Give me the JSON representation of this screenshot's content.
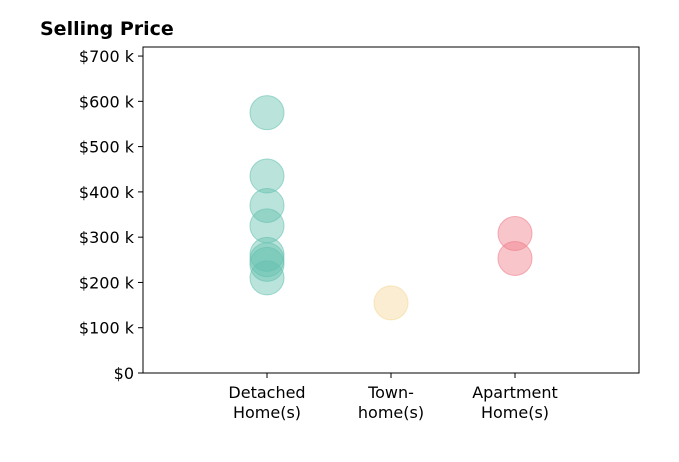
{
  "chart_data": {
    "type": "scatter",
    "title": "Selling Price",
    "xlabel": "",
    "ylabel": "",
    "ylim": [
      0,
      720000
    ],
    "grid": false,
    "categories": [
      [
        "Detached",
        "Home(s)"
      ],
      [
        "Town-",
        "home(s)"
      ],
      [
        "Apartment",
        "Home(s)"
      ]
    ],
    "y_ticks": [
      {
        "value": 0,
        "label": "$0"
      },
      {
        "value": 100000,
        "label": "$100 k"
      },
      {
        "value": 200000,
        "label": "$200 k"
      },
      {
        "value": 300000,
        "label": "$300 k"
      },
      {
        "value": 400000,
        "label": "$400 k"
      },
      {
        "value": 500000,
        "label": "$500 k"
      },
      {
        "value": 600000,
        "label": "$600 k"
      },
      {
        "value": 700000,
        "label": "$700 k"
      }
    ],
    "series": [
      {
        "category_index": 0,
        "color": "#66c2b0",
        "values": [
          575000,
          435000,
          370000,
          325000,
          262000,
          250000,
          240000,
          210000
        ]
      },
      {
        "category_index": 1,
        "color": "#f5d89a",
        "values": [
          155000
        ]
      },
      {
        "category_index": 2,
        "color": "#ef7f8a",
        "values": [
          308000,
          253000
        ]
      }
    ]
  }
}
